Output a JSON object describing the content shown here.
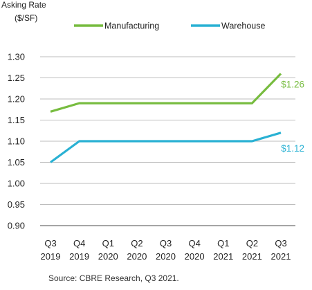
{
  "chart_data": {
    "type": "line",
    "ylabel_lines": [
      "Asking Rate",
      "($/SF)"
    ],
    "x": [
      [
        "Q3",
        "2019"
      ],
      [
        "Q4",
        "2019"
      ],
      [
        "Q1",
        "2020"
      ],
      [
        "Q2",
        "2020"
      ],
      [
        "Q3",
        "2020"
      ],
      [
        "Q4",
        "2020"
      ],
      [
        "Q1",
        "2021"
      ],
      [
        "Q2",
        "2021"
      ],
      [
        "Q3",
        "2021"
      ]
    ],
    "y_ticks": [
      "1.30",
      "1.25",
      "1.20",
      "1.15",
      "1.10",
      "1.05",
      "1.00",
      "0.95",
      "0.90"
    ],
    "ylim": [
      0.9,
      1.3
    ],
    "grid": true,
    "legend_position": "top",
    "series": [
      {
        "name": "Manufacturing",
        "color": "#77bc3f",
        "values": [
          1.17,
          1.19,
          1.19,
          1.19,
          1.19,
          1.19,
          1.19,
          1.19,
          1.26
        ],
        "end_label": "$1.26"
      },
      {
        "name": "Warehouse",
        "color": "#29b1d3",
        "values": [
          1.05,
          1.1,
          1.1,
          1.1,
          1.1,
          1.1,
          1.1,
          1.1,
          1.12
        ],
        "end_label": "$1.12"
      }
    ],
    "source": "Source: CBRE Research, Q3 2021."
  }
}
